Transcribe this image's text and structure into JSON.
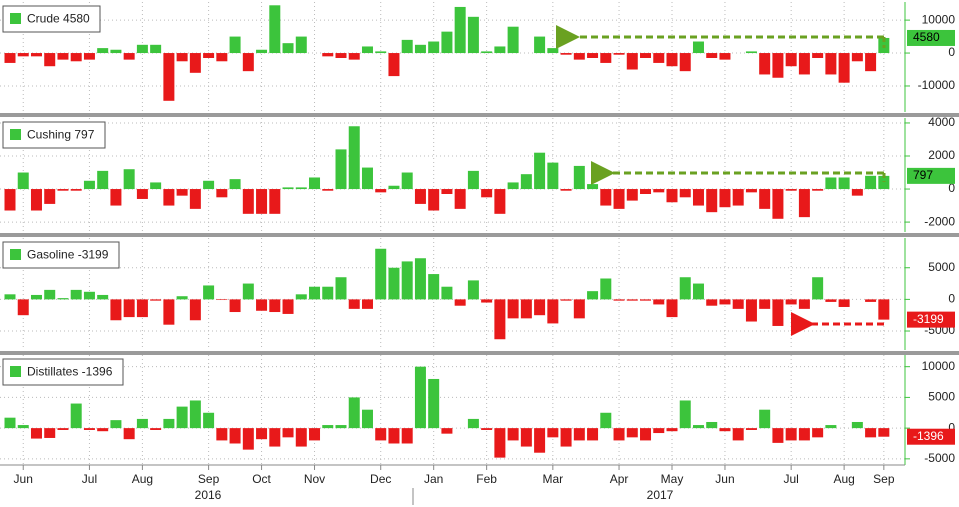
{
  "chart_data": {
    "type": "bar",
    "categories": [
      null,
      "Jun",
      null,
      null,
      null,
      null,
      "Jul",
      null,
      null,
      null,
      "Aug",
      null,
      null,
      null,
      null,
      "Sep",
      null,
      null,
      null,
      "Oct",
      null,
      null,
      null,
      "Nov",
      null,
      null,
      null,
      null,
      "Dec",
      null,
      null,
      null,
      "Jan",
      null,
      null,
      null,
      "Feb",
      null,
      null,
      null,
      null,
      "Mar",
      null,
      null,
      null,
      null,
      "Apr",
      null,
      null,
      null,
      "May",
      null,
      null,
      null,
      "Jun",
      null,
      null,
      null,
      null,
      "Jul",
      null,
      null,
      null,
      "Aug",
      null,
      null,
      "Sep"
    ],
    "years": [
      "2016",
      "2017"
    ],
    "negative_color": "#e8191a",
    "grid": true,
    "series": [
      {
        "name": "Crude 4580",
        "color": "#3cc43c",
        "ylim": [
          -17900,
          15500
        ],
        "yticks": [
          10000,
          0,
          -10000
        ],
        "values": [
          -3000,
          -1000,
          -1000,
          -4000,
          -2000,
          -2500,
          -2000,
          1500,
          1000,
          -2000,
          2500,
          2500,
          -14500,
          -2500,
          -6000,
          -1500,
          -2500,
          5000,
          -5500,
          1000,
          14500,
          3000,
          5000,
          0,
          -1000,
          -1500,
          -2000,
          2000,
          500,
          -7000,
          4000,
          2500,
          3500,
          6500,
          14000,
          11000,
          500,
          2000,
          8000,
          0,
          5000,
          1500,
          -500,
          -2000,
          -1500,
          -3000,
          -500,
          -5000,
          -1500,
          -3000,
          -4000,
          -5500,
          3500,
          -1500,
          -2000,
          0,
          500,
          -6500,
          -7500,
          -4000,
          -6500,
          -1500,
          -6500,
          -9000,
          -2500,
          -5500,
          4580
        ]
      },
      {
        "name": "Cushing 797",
        "color": "#3cc43c",
        "ylim": [
          -2600,
          4300
        ],
        "yticks": [
          4000,
          2000,
          0,
          -2000
        ],
        "values": [
          -1300,
          1000,
          -1300,
          -900,
          -100,
          -100,
          500,
          1100,
          -1000,
          1200,
          -600,
          400,
          -1000,
          -400,
          -1200,
          500,
          -500,
          600,
          -1500,
          -1500,
          -1500,
          100,
          100,
          700,
          -100,
          2400,
          3800,
          1300,
          -200,
          200,
          1000,
          -900,
          -1300,
          -300,
          -1200,
          1100,
          -500,
          -1500,
          400,
          900,
          2200,
          1600,
          -100,
          1400,
          300,
          -1000,
          -1200,
          -700,
          -300,
          -200,
          -800,
          -500,
          -1000,
          -1400,
          -1100,
          -1000,
          -200,
          -1200,
          -1800,
          -100,
          -1700,
          -100,
          700,
          700,
          -400,
          800,
          797
        ]
      },
      {
        "name": "Gasoline -3199",
        "color": "#3cc43c",
        "ylim": [
          -8000,
          9700
        ],
        "yticks": [
          5000,
          0,
          -5000
        ],
        "values": [
          800,
          -2500,
          700,
          1500,
          200,
          1500,
          1200,
          700,
          -3300,
          -2800,
          -2800,
          -200,
          -4000,
          500,
          -3300,
          2200,
          -100,
          -2000,
          2500,
          -1800,
          -2000,
          -2300,
          800,
          2000,
          2000,
          3500,
          -1500,
          -1500,
          8000,
          5000,
          6000,
          6500,
          4000,
          2000,
          -1000,
          3000,
          -500,
          -6300,
          -3000,
          -3000,
          -2500,
          -3800,
          -200,
          -3000,
          1300,
          3300,
          -200,
          -200,
          -200,
          -800,
          -2800,
          3500,
          2500,
          -1000,
          -800,
          -1500,
          -3500,
          -1500,
          -4200,
          -800,
          -1500,
          3500,
          -400,
          -1200,
          0,
          -400,
          -3199
        ]
      },
      {
        "name": "Distillates -1396",
        "color": "#3cc43c",
        "ylim": [
          -6000,
          11900
        ],
        "yticks": [
          10000,
          5000,
          0,
          -5000
        ],
        "values": [
          1700,
          500,
          -1700,
          -1600,
          -300,
          4000,
          -300,
          -500,
          1300,
          -1800,
          1500,
          -300,
          1500,
          3500,
          4500,
          2500,
          -2000,
          -2500,
          -3500,
          -1800,
          -3000,
          -1500,
          -3000,
          -2000,
          500,
          500,
          5000,
          3000,
          -2000,
          -2500,
          -2500,
          10000,
          8000,
          -900,
          0,
          1500,
          -300,
          -4800,
          -2000,
          -3000,
          -4000,
          -1500,
          -3000,
          -2000,
          -2000,
          2500,
          -2000,
          -1500,
          -2000,
          -800,
          -500,
          4500,
          500,
          1000,
          -500,
          -2000,
          -300,
          3000,
          -2400,
          -2000,
          -2000,
          -1500,
          500,
          0,
          1000,
          -1500,
          -1396
        ]
      }
    ]
  }
}
